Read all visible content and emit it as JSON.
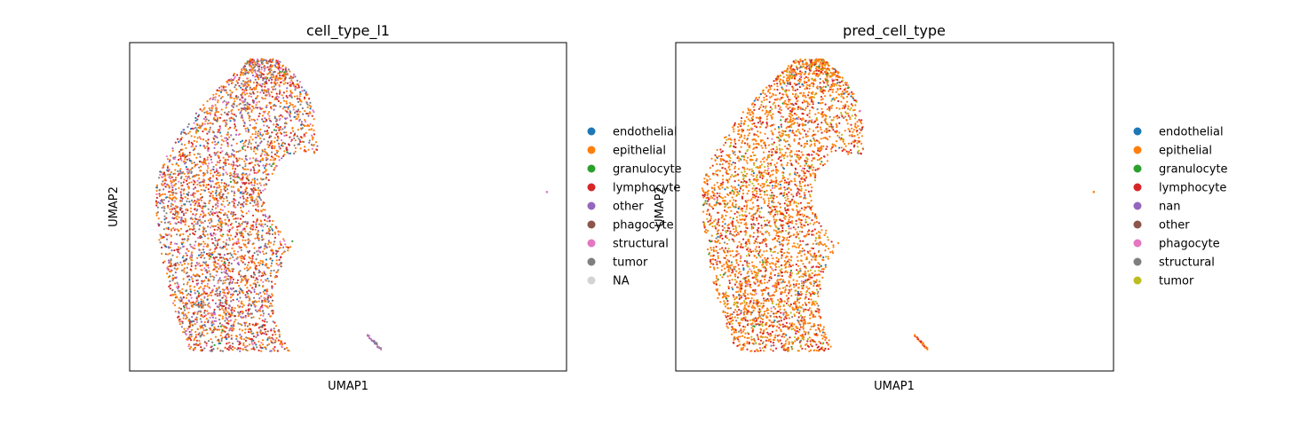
{
  "chart_data": [
    {
      "type": "scatter",
      "title": "cell_type_l1",
      "xlabel": "UMAP1",
      "ylabel": "UMAP2",
      "grid": false,
      "ticks": "hidden",
      "legend_placement": "right, outside",
      "legend": [
        {
          "label": "endothelial",
          "color": "#1f77b4"
        },
        {
          "label": "epithelial",
          "color": "#ff7f0e"
        },
        {
          "label": "granulocyte",
          "color": "#2ca02c"
        },
        {
          "label": "lymphocyte",
          "color": "#d62728"
        },
        {
          "label": "other",
          "color": "#9467bd"
        },
        {
          "label": "phagocyte",
          "color": "#8c564b"
        },
        {
          "label": "structural",
          "color": "#e377c2"
        },
        {
          "label": "tumor",
          "color": "#7f7f7f"
        },
        {
          "label": "NA",
          "color": "#d3d3d3"
        }
      ],
      "mixture": [
        [
          "#ff7f0e",
          40
        ],
        [
          "#d62728",
          18
        ],
        [
          "#7f7f7f",
          16
        ],
        [
          "#e377c2",
          10
        ],
        [
          "#9467bd",
          8
        ],
        [
          "#1f77b4",
          4
        ],
        [
          "#8c564b",
          3
        ],
        [
          "#2ca02c",
          1
        ]
      ],
      "outliers": [
        {
          "x": 0.955,
          "y": 0.545,
          "color": "#e377c2"
        },
        {
          "x": 0.56,
          "y": 0.09,
          "color": "#9467bd"
        },
        {
          "x": 0.565,
          "y": 0.085,
          "color": "#7f7f7f"
        }
      ]
    },
    {
      "type": "scatter",
      "title": "pred_cell_type",
      "xlabel": "UMAP1",
      "ylabel": "UMAP2",
      "grid": false,
      "ticks": "hidden",
      "legend_placement": "right, outside",
      "legend": [
        {
          "label": "endothelial",
          "color": "#1f77b4"
        },
        {
          "label": "epithelial",
          "color": "#ff7f0e"
        },
        {
          "label": "granulocyte",
          "color": "#2ca02c"
        },
        {
          "label": "lymphocyte",
          "color": "#d62728"
        },
        {
          "label": "nan",
          "color": "#9467bd"
        },
        {
          "label": "other",
          "color": "#8c564b"
        },
        {
          "label": "phagocyte",
          "color": "#e377c2"
        },
        {
          "label": "structural",
          "color": "#7f7f7f"
        },
        {
          "label": "tumor",
          "color": "#bcbd22"
        }
      ],
      "mixture": [
        [
          "#ff7f0e",
          62
        ],
        [
          "#d62728",
          22
        ],
        [
          "#bcbd22",
          9
        ],
        [
          "#7f7f7f",
          3
        ],
        [
          "#1f77b4",
          2
        ],
        [
          "#2ca02c",
          1
        ],
        [
          "#e377c2",
          1
        ]
      ],
      "outliers": [
        {
          "x": 0.955,
          "y": 0.545,
          "color": "#ff7f0e"
        },
        {
          "x": 0.56,
          "y": 0.09,
          "color": "#d62728"
        },
        {
          "x": 0.565,
          "y": 0.085,
          "color": "#ff7f0e"
        }
      ]
    }
  ]
}
